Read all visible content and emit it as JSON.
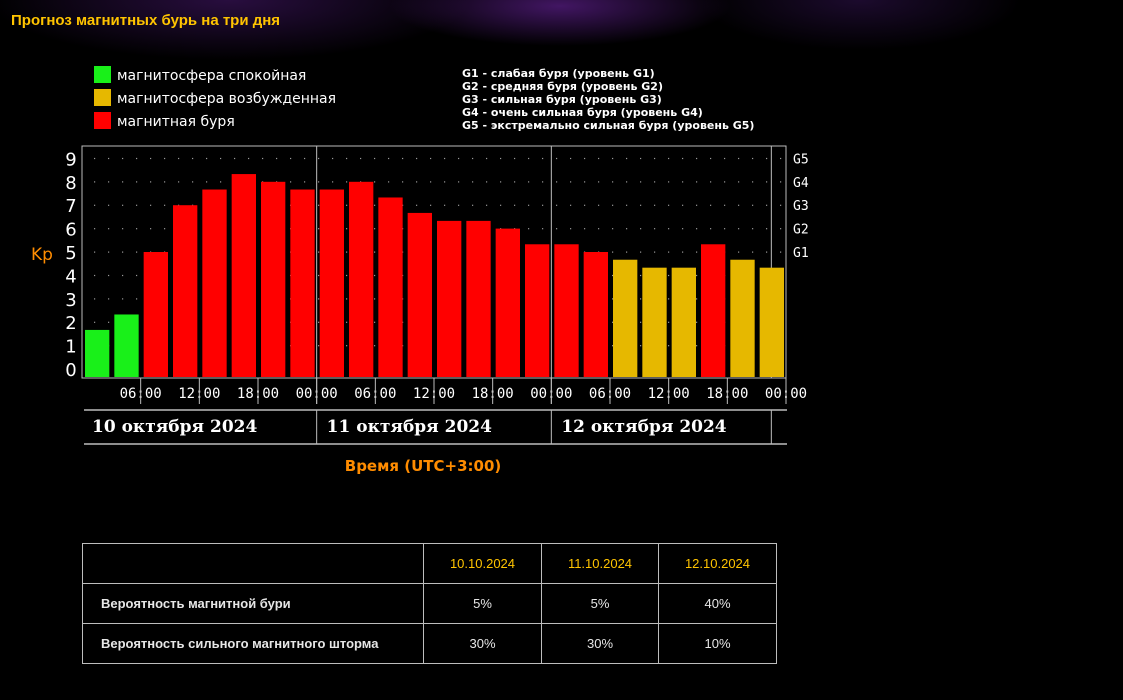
{
  "page": {
    "title": "Прогноз магнитных бурь на три дня"
  },
  "colors": {
    "quiet": "#19f019",
    "unsettled": "#e6b800",
    "storm": "#ff0000",
    "axis_label": "#ff8c00",
    "title": "#ffc400"
  },
  "legend": {
    "items": [
      {
        "label": "магнитосфера спокойная",
        "color": "#19f019"
      },
      {
        "label": "магнитосфера возбужденная",
        "color": "#e6b800"
      },
      {
        "label": "магнитная буря",
        "color": "#ff0000"
      }
    ],
    "g_levels": [
      "G1 - слабая буря (уровень G1)",
      "G2 - средняя буря (уровень G2)",
      "G3 - сильная буря (уровень G3)",
      "G4 - очень сильная буря (уровень G4)",
      "G5 - экстремально сильная буря (уровень G5)"
    ]
  },
  "chart_data": {
    "type": "bar",
    "title": "Прогноз магнитных бурь на три дня",
    "ylabel": "Kp",
    "xlabel": "Время (UTC+3:00)",
    "ylim": [
      0,
      9.3
    ],
    "y_ticks": [
      "0",
      "1",
      "2",
      "3",
      "4",
      "5",
      "6",
      "7",
      "8",
      "9"
    ],
    "g_ticks": [
      {
        "label": "G1",
        "kp": 5
      },
      {
        "label": "G2",
        "kp": 6
      },
      {
        "label": "G3",
        "kp": 7
      },
      {
        "label": "G4",
        "kp": 8
      },
      {
        "label": "G5",
        "kp": 9
      }
    ],
    "x_ticks": [
      "06:00",
      "12:00",
      "18:00",
      "00:00",
      "06:00",
      "12:00",
      "18:00",
      "00:00",
      "06:00",
      "12:00",
      "18:00",
      "00:00"
    ],
    "days": [
      "10 октября 2024",
      "11 октября 2024",
      "12 октября 2024"
    ],
    "values": [
      1.67,
      2.33,
      5.0,
      7.0,
      7.67,
      8.33,
      8.0,
      7.67,
      7.67,
      8.0,
      7.33,
      6.67,
      6.33,
      6.33,
      6.0,
      5.33,
      5.33,
      5.0,
      4.67,
      4.33,
      4.33,
      5.33,
      4.67,
      4.33
    ]
  },
  "probability_table": {
    "dates": [
      "10.10.2024",
      "11.10.2024",
      "12.10.2024"
    ],
    "rows": [
      {
        "label": "Вероятность магнитной бури",
        "values": [
          "5%",
          "5%",
          "40%"
        ]
      },
      {
        "label": "Вероятность сильного магнитного шторма",
        "values": [
          "30%",
          "30%",
          "10%"
        ]
      }
    ]
  }
}
